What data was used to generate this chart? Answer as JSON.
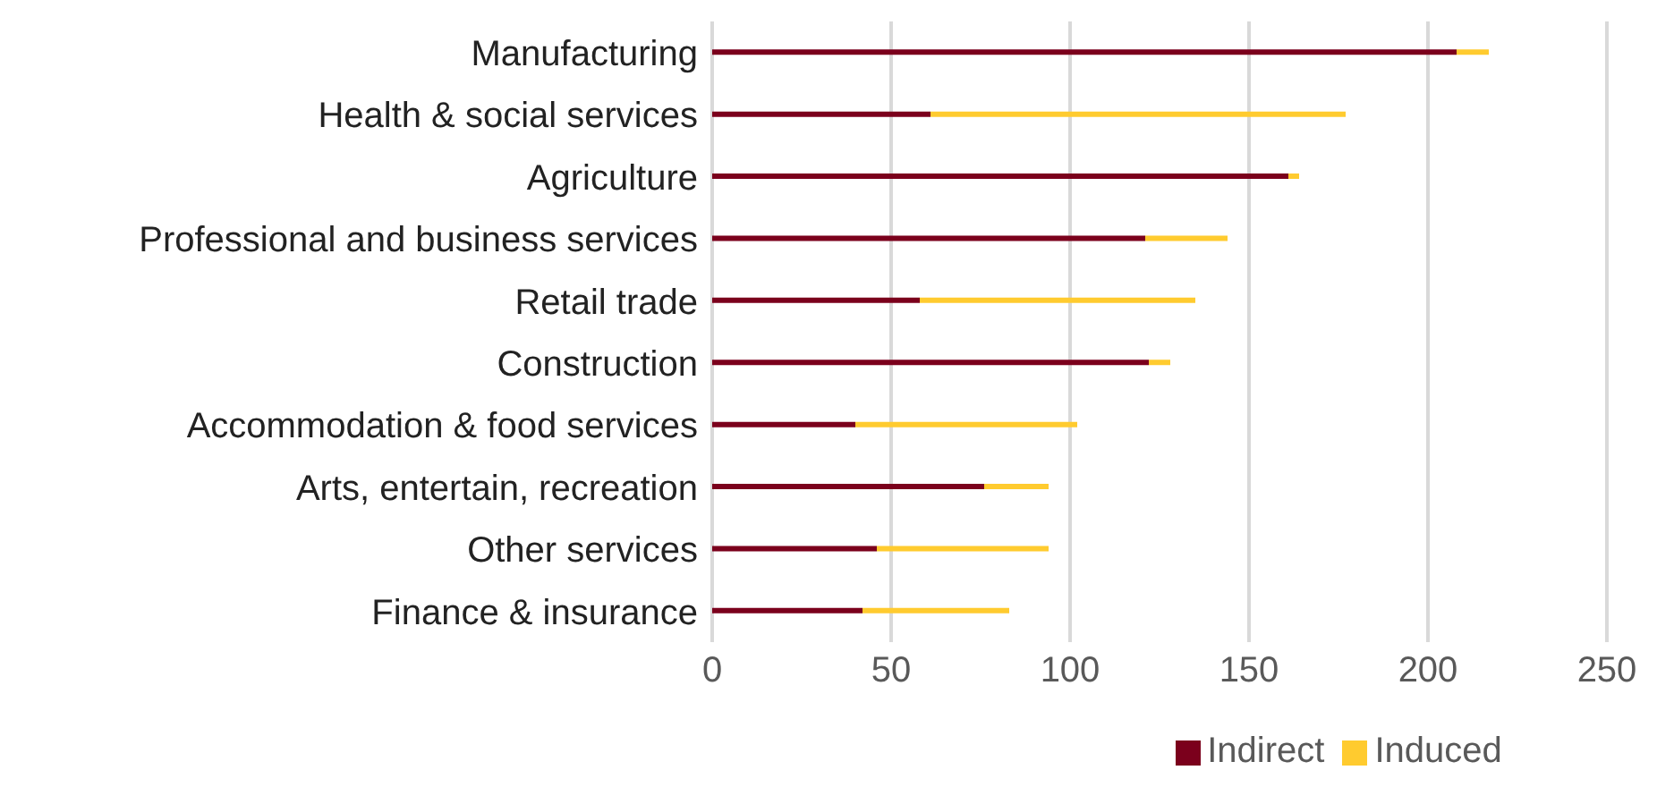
{
  "chart_data": {
    "type": "bar",
    "orientation": "horizontal",
    "stacked": true,
    "categories": [
      "Manufacturing",
      "Health & social services",
      "Agriculture",
      "Professional and business services",
      "Retail trade",
      "Construction",
      "Accommodation & food services",
      "Arts, entertain, recreation",
      "Other services",
      "Finance & insurance"
    ],
    "series": [
      {
        "name": "Indirect",
        "color": "#7b001c",
        "values": [
          208,
          61,
          161,
          121,
          58,
          122,
          40,
          76,
          46,
          42
        ]
      },
      {
        "name": "Induced",
        "color": "#ffcb2f",
        "values": [
          9,
          116,
          3,
          23,
          77,
          6,
          62,
          18,
          48,
          41
        ]
      }
    ],
    "xlim": [
      0,
      250
    ],
    "xticks": [
      0,
      50,
      100,
      150,
      200,
      250
    ],
    "grid": "x",
    "legend": "bottom"
  }
}
